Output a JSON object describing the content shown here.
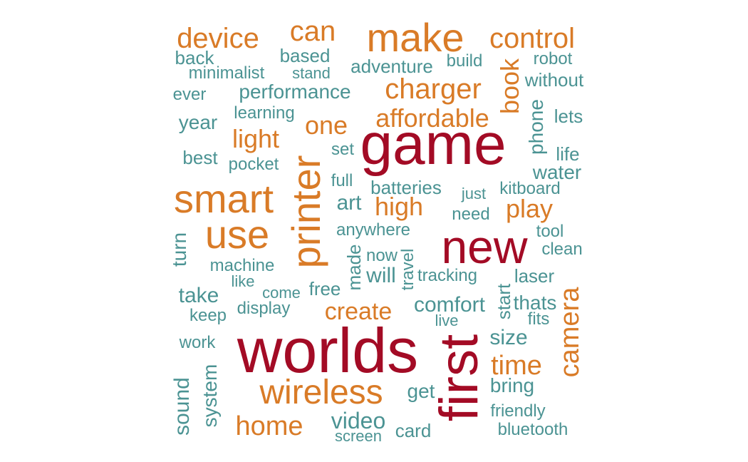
{
  "colors": {
    "high": "#a30b25",
    "medium": "#d97b27",
    "low": "#4b9393"
  },
  "words": [
    {
      "text": "worlds",
      "tier": "high"
    },
    {
      "text": "game",
      "tier": "high"
    },
    {
      "text": "first",
      "tier": "high"
    },
    {
      "text": "new",
      "tier": "high"
    },
    {
      "text": "make",
      "tier": "medium"
    },
    {
      "text": "smart",
      "tier": "medium"
    },
    {
      "text": "use",
      "tier": "medium"
    },
    {
      "text": "printer",
      "tier": "medium"
    },
    {
      "text": "wireless",
      "tier": "medium"
    },
    {
      "text": "device",
      "tier": "medium"
    },
    {
      "text": "can",
      "tier": "medium"
    },
    {
      "text": "control",
      "tier": "medium"
    },
    {
      "text": "charger",
      "tier": "medium"
    },
    {
      "text": "affordable",
      "tier": "medium"
    },
    {
      "text": "book",
      "tier": "medium"
    },
    {
      "text": "one",
      "tier": "medium"
    },
    {
      "text": "light",
      "tier": "medium"
    },
    {
      "text": "high",
      "tier": "medium"
    },
    {
      "text": "play",
      "tier": "medium"
    },
    {
      "text": "create",
      "tier": "medium"
    },
    {
      "text": "time",
      "tier": "medium"
    },
    {
      "text": "camera",
      "tier": "medium"
    },
    {
      "text": "home",
      "tier": "medium"
    },
    {
      "text": "back",
      "tier": "low"
    },
    {
      "text": "based",
      "tier": "low"
    },
    {
      "text": "build",
      "tier": "low"
    },
    {
      "text": "robot",
      "tier": "low"
    },
    {
      "text": "minimalist",
      "tier": "low"
    },
    {
      "text": "stand",
      "tier": "low"
    },
    {
      "text": "adventure",
      "tier": "low"
    },
    {
      "text": "without",
      "tier": "low"
    },
    {
      "text": "ever",
      "tier": "low"
    },
    {
      "text": "performance",
      "tier": "low"
    },
    {
      "text": "phone",
      "tier": "low"
    },
    {
      "text": "learning",
      "tier": "low"
    },
    {
      "text": "lets",
      "tier": "low"
    },
    {
      "text": "year",
      "tier": "low"
    },
    {
      "text": "set",
      "tier": "low"
    },
    {
      "text": "life",
      "tier": "low"
    },
    {
      "text": "best",
      "tier": "low"
    },
    {
      "text": "pocket",
      "tier": "low"
    },
    {
      "text": "water",
      "tier": "low"
    },
    {
      "text": "full",
      "tier": "low"
    },
    {
      "text": "batteries",
      "tier": "low"
    },
    {
      "text": "just",
      "tier": "low"
    },
    {
      "text": "kitboard",
      "tier": "low"
    },
    {
      "text": "art",
      "tier": "low"
    },
    {
      "text": "need",
      "tier": "low"
    },
    {
      "text": "anywhere",
      "tier": "low"
    },
    {
      "text": "tool",
      "tier": "low"
    },
    {
      "text": "turn",
      "tier": "low"
    },
    {
      "text": "made",
      "tier": "low"
    },
    {
      "text": "now",
      "tier": "low"
    },
    {
      "text": "travel",
      "tier": "low"
    },
    {
      "text": "clean",
      "tier": "low"
    },
    {
      "text": "machine",
      "tier": "low"
    },
    {
      "text": "will",
      "tier": "low"
    },
    {
      "text": "tracking",
      "tier": "low"
    },
    {
      "text": "laser",
      "tier": "low"
    },
    {
      "text": "like",
      "tier": "low"
    },
    {
      "text": "free",
      "tier": "low"
    },
    {
      "text": "take",
      "tier": "low"
    },
    {
      "text": "come",
      "tier": "low"
    },
    {
      "text": "start",
      "tier": "low"
    },
    {
      "text": "thats",
      "tier": "low"
    },
    {
      "text": "comfort",
      "tier": "low"
    },
    {
      "text": "keep",
      "tier": "low"
    },
    {
      "text": "display",
      "tier": "low"
    },
    {
      "text": "fits",
      "tier": "low"
    },
    {
      "text": "live",
      "tier": "low"
    },
    {
      "text": "size",
      "tier": "low"
    },
    {
      "text": "work",
      "tier": "low"
    },
    {
      "text": "system",
      "tier": "low"
    },
    {
      "text": "sound",
      "tier": "low"
    },
    {
      "text": "bring",
      "tier": "low"
    },
    {
      "text": "get",
      "tier": "low"
    },
    {
      "text": "friendly",
      "tier": "low"
    },
    {
      "text": "video",
      "tier": "low"
    },
    {
      "text": "card",
      "tier": "low"
    },
    {
      "text": "bluetooth",
      "tier": "low"
    },
    {
      "text": "screen",
      "tier": "low"
    }
  ]
}
